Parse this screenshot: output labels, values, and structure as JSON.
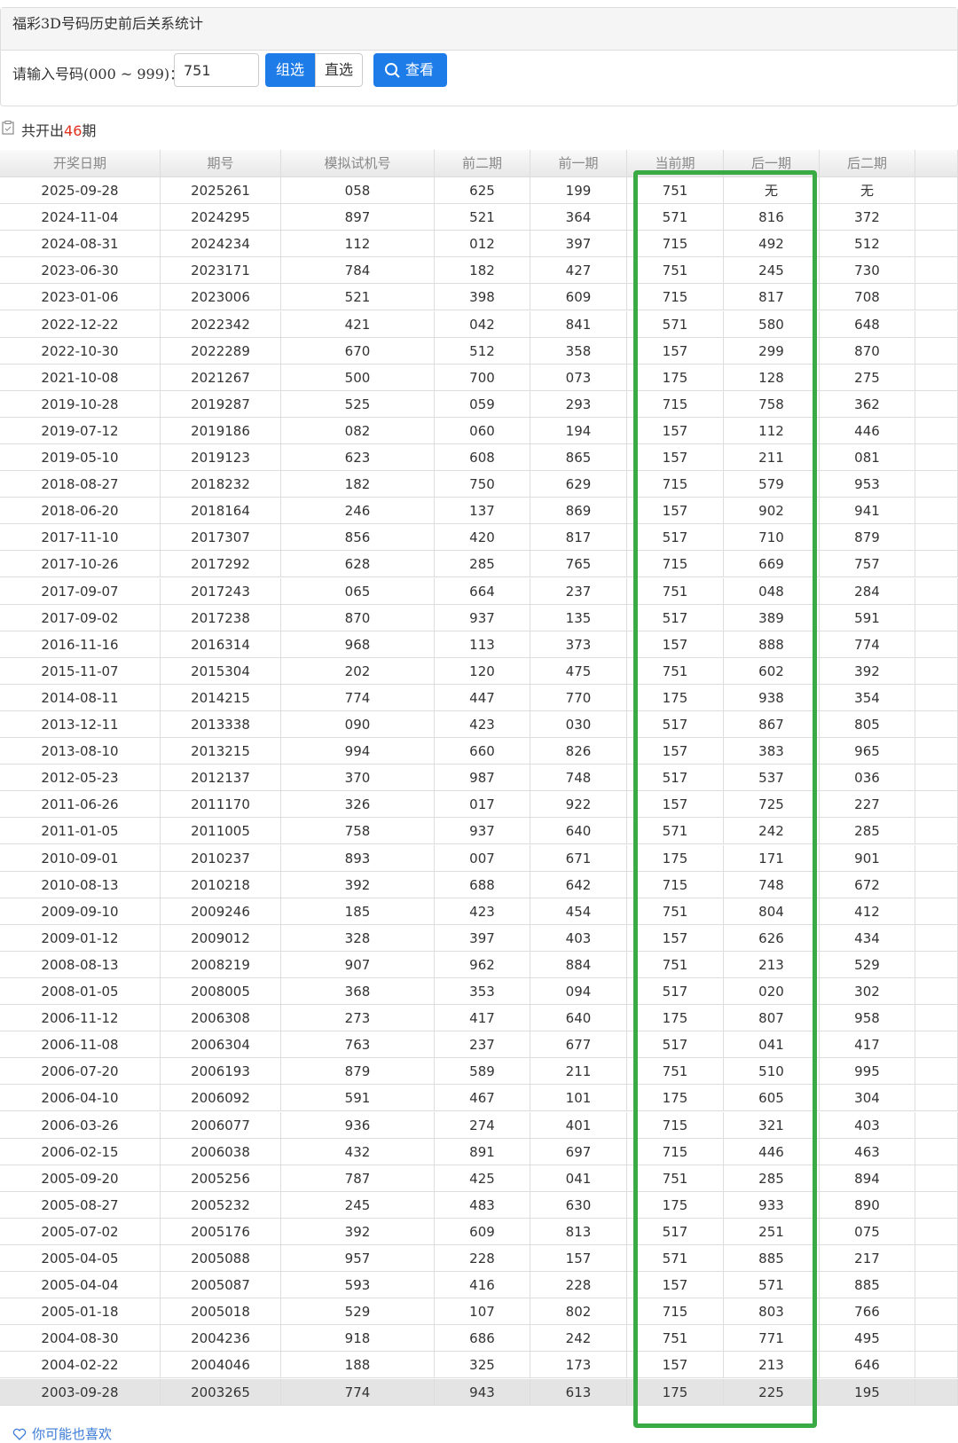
{
  "header": {
    "title": "福彩3D号码历史前后关系统计"
  },
  "form": {
    "label": "请输入号码(000 ~ 999)：",
    "input_value": "751",
    "buttons": [
      "组选",
      "直选",
      "查看"
    ]
  },
  "summary": {
    "prefix": "共开出",
    "count": 46,
    "suffix": "期"
  },
  "table": {
    "headers": [
      "开奖日期",
      "期号",
      "模拟试机号",
      "前二期",
      "前一期",
      "当前期",
      "后一期",
      "后二期"
    ],
    "rows": [
      [
        "2025-09-28",
        "2025261",
        "058",
        "625",
        "199",
        "751",
        "无",
        "无"
      ],
      [
        "2024-11-04",
        "2024295",
        "897",
        "521",
        "364",
        "571",
        "816",
        "372"
      ],
      [
        "2024-08-31",
        "2024234",
        "112",
        "012",
        "397",
        "715",
        "492",
        "512"
      ],
      [
        "2023-06-30",
        "2023171",
        "784",
        "182",
        "427",
        "751",
        "245",
        "730"
      ],
      [
        "2023-01-06",
        "2023006",
        "521",
        "398",
        "609",
        "715",
        "817",
        "708"
      ],
      [
        "2022-12-22",
        "2022342",
        "421",
        "042",
        "841",
        "571",
        "580",
        "648"
      ],
      [
        "2022-10-30",
        "2022289",
        "670",
        "512",
        "358",
        "157",
        "299",
        "870"
      ],
      [
        "2021-10-08",
        "2021267",
        "500",
        "700",
        "073",
        "175",
        "128",
        "275"
      ],
      [
        "2019-10-28",
        "2019287",
        "525",
        "059",
        "293",
        "715",
        "758",
        "362"
      ],
      [
        "2019-07-12",
        "2019186",
        "082",
        "060",
        "194",
        "157",
        "112",
        "446"
      ],
      [
        "2019-05-10",
        "2019123",
        "623",
        "608",
        "865",
        "157",
        "211",
        "081"
      ],
      [
        "2018-08-27",
        "2018232",
        "182",
        "750",
        "629",
        "715",
        "579",
        "953"
      ],
      [
        "2018-06-20",
        "2018164",
        "246",
        "137",
        "869",
        "157",
        "902",
        "941"
      ],
      [
        "2017-11-10",
        "2017307",
        "856",
        "420",
        "817",
        "517",
        "710",
        "879"
      ],
      [
        "2017-10-26",
        "2017292",
        "628",
        "285",
        "765",
        "715",
        "669",
        "757"
      ],
      [
        "2017-09-07",
        "2017243",
        "065",
        "664",
        "237",
        "751",
        "048",
        "284"
      ],
      [
        "2017-09-02",
        "2017238",
        "870",
        "937",
        "135",
        "517",
        "389",
        "591"
      ],
      [
        "2016-11-16",
        "2016314",
        "968",
        "113",
        "373",
        "157",
        "888",
        "774"
      ],
      [
        "2015-11-07",
        "2015304",
        "202",
        "120",
        "475",
        "751",
        "602",
        "392"
      ],
      [
        "2014-08-11",
        "2014215",
        "774",
        "447",
        "770",
        "175",
        "938",
        "354"
      ],
      [
        "2013-12-11",
        "2013338",
        "090",
        "423",
        "030",
        "517",
        "867",
        "805"
      ],
      [
        "2013-08-10",
        "2013215",
        "994",
        "660",
        "826",
        "157",
        "383",
        "965"
      ],
      [
        "2012-05-23",
        "2012137",
        "370",
        "987",
        "748",
        "517",
        "537",
        "036"
      ],
      [
        "2011-06-26",
        "2011170",
        "326",
        "017",
        "922",
        "157",
        "725",
        "227"
      ],
      [
        "2011-01-05",
        "2011005",
        "758",
        "937",
        "640",
        "571",
        "242",
        "285"
      ],
      [
        "2010-09-01",
        "2010237",
        "893",
        "007",
        "671",
        "175",
        "171",
        "901"
      ],
      [
        "2010-08-13",
        "2010218",
        "392",
        "688",
        "642",
        "715",
        "748",
        "672"
      ],
      [
        "2009-09-10",
        "2009246",
        "185",
        "423",
        "454",
        "751",
        "804",
        "412"
      ],
      [
        "2009-01-12",
        "2009012",
        "328",
        "397",
        "403",
        "157",
        "626",
        "434"
      ],
      [
        "2008-08-13",
        "2008219",
        "907",
        "962",
        "884",
        "751",
        "213",
        "529"
      ],
      [
        "2008-01-05",
        "2008005",
        "368",
        "353",
        "094",
        "517",
        "020",
        "302"
      ],
      [
        "2006-11-12",
        "2006308",
        "273",
        "417",
        "640",
        "175",
        "807",
        "958"
      ],
      [
        "2006-11-08",
        "2006304",
        "763",
        "237",
        "677",
        "517",
        "041",
        "417"
      ],
      [
        "2006-07-20",
        "2006193",
        "879",
        "589",
        "211",
        "751",
        "510",
        "995"
      ],
      [
        "2006-04-10",
        "2006092",
        "591",
        "467",
        "101",
        "175",
        "605",
        "304"
      ],
      [
        "2006-03-26",
        "2006077",
        "936",
        "274",
        "401",
        "715",
        "321",
        "403"
      ],
      [
        "2006-02-15",
        "2006038",
        "432",
        "891",
        "697",
        "715",
        "446",
        "463"
      ],
      [
        "2005-09-20",
        "2005256",
        "787",
        "425",
        "041",
        "751",
        "285",
        "894"
      ],
      [
        "2005-08-27",
        "2005232",
        "245",
        "483",
        "630",
        "175",
        "933",
        "890"
      ],
      [
        "2005-07-02",
        "2005176",
        "392",
        "609",
        "813",
        "517",
        "251",
        "075"
      ],
      [
        "2005-04-05",
        "2005088",
        "957",
        "228",
        "157",
        "571",
        "885",
        "217"
      ],
      [
        "2005-04-04",
        "2005087",
        "593",
        "416",
        "228",
        "157",
        "571",
        "885"
      ],
      [
        "2005-01-18",
        "2005018",
        "529",
        "107",
        "802",
        "715",
        "803",
        "766"
      ],
      [
        "2004-08-30",
        "2004236",
        "918",
        "686",
        "242",
        "751",
        "771",
        "495"
      ],
      [
        "2004-02-22",
        "2004046",
        "188",
        "325",
        "173",
        "157",
        "213",
        "646"
      ],
      [
        "2003-09-28",
        "2003265",
        "774",
        "943",
        "613",
        "175",
        "225",
        "195"
      ]
    ]
  },
  "footer": {
    "text": "你可能也喜欢"
  }
}
